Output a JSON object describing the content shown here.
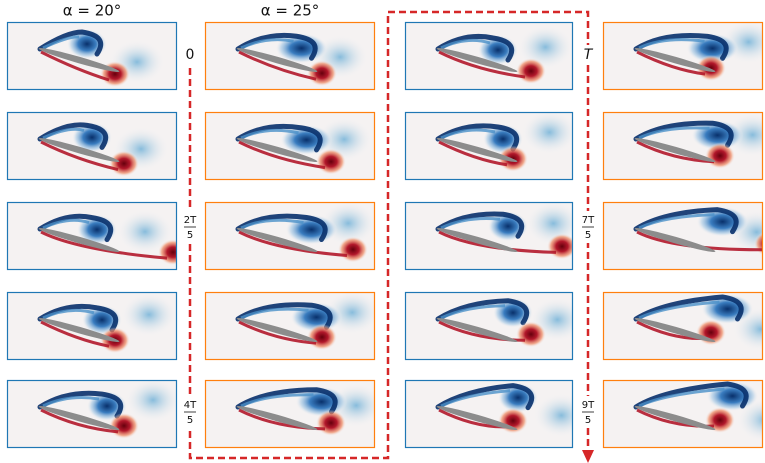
{
  "headers": [
    "α = 20°",
    "α = 25°"
  ],
  "time_labels": {
    "left": [
      {
        "text": "0"
      },
      {
        "numerator": "2T",
        "denominator": "5"
      },
      {
        "numerator": "4T",
        "denominator": "5"
      }
    ],
    "right": [
      {
        "text": "T"
      },
      {
        "numerator": "7T",
        "denominator": "5"
      },
      {
        "numerator": "9T",
        "denominator": "5"
      }
    ]
  }
}
